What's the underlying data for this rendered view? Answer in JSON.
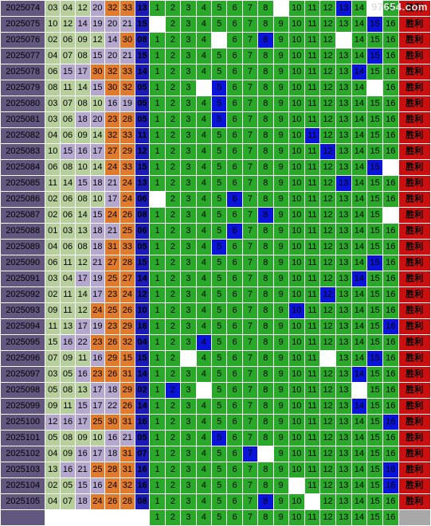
{
  "watermark": "97654.com",
  "result_label": "胜利",
  "colors": {
    "issue_bg": "#62577e",
    "green": "#b7cf9c",
    "purple": "#b4a8cf",
    "orange": "#e07a2c",
    "blue": "#1a1ab6",
    "cell": "#2aa82a",
    "hit": "#0a14d8",
    "result": "#c81010"
  },
  "rows": [
    {
      "issue": "2025074",
      "reds": [
        "03",
        "04",
        "12",
        "20",
        "32",
        "33"
      ],
      "blue": "13",
      "redcolors": [
        "g",
        "g",
        "g",
        "p",
        "o",
        "o"
      ],
      "hit": 13,
      "blanks": [
        9,
        15
      ]
    },
    {
      "issue": "2025075",
      "reds": [
        "10",
        "12",
        "14",
        "19",
        "20",
        "21"
      ],
      "blue": "15",
      "redcolors": [
        "g",
        "g",
        "p",
        "p",
        "p",
        "p"
      ],
      "hit": 15,
      "blanks": [
        1
      ]
    },
    {
      "issue": "2025076",
      "reds": [
        "02",
        "06",
        "09",
        "12",
        "14",
        "30"
      ],
      "blue": "08",
      "redcolors": [
        "g",
        "g",
        "g",
        "g",
        "p",
        "o"
      ],
      "hit": 8,
      "blanks": [
        5,
        13
      ]
    },
    {
      "issue": "2025077",
      "reds": [
        "04",
        "07",
        "08",
        "15",
        "20",
        "21"
      ],
      "blue": "15",
      "redcolors": [
        "g",
        "g",
        "g",
        "p",
        "p",
        "p"
      ],
      "hit": 15,
      "blanks": []
    },
    {
      "issue": "2025078",
      "reds": [
        "06",
        "15",
        "17",
        "30",
        "32",
        "33"
      ],
      "blue": "14",
      "redcolors": [
        "g",
        "p",
        "p",
        "o",
        "o",
        "o"
      ],
      "hit": 14,
      "blanks": []
    },
    {
      "issue": "2025079",
      "reds": [
        "08",
        "11",
        "14",
        "15",
        "30",
        "32"
      ],
      "blue": "05",
      "redcolors": [
        "g",
        "g",
        "g",
        "p",
        "o",
        "o"
      ],
      "hit": 5,
      "blanks": [
        4,
        15
      ]
    },
    {
      "issue": "2025080",
      "reds": [
        "03",
        "07",
        "08",
        "10",
        "16",
        "19"
      ],
      "blue": "05",
      "redcolors": [
        "g",
        "g",
        "g",
        "g",
        "p",
        "p"
      ],
      "hit": 5,
      "blanks": []
    },
    {
      "issue": "2025081",
      "reds": [
        "03",
        "06",
        "18",
        "20",
        "23",
        "28"
      ],
      "blue": "05",
      "redcolors": [
        "g",
        "g",
        "p",
        "p",
        "o",
        "o"
      ],
      "hit": 5,
      "blanks": []
    },
    {
      "issue": "2025082",
      "reds": [
        "04",
        "06",
        "09",
        "14",
        "32",
        "33"
      ],
      "blue": "11",
      "redcolors": [
        "g",
        "g",
        "g",
        "g",
        "o",
        "o"
      ],
      "hit": 11,
      "blanks": []
    },
    {
      "issue": "2025083",
      "reds": [
        "10",
        "15",
        "16",
        "17",
        "27",
        "29"
      ],
      "blue": "12",
      "redcolors": [
        "g",
        "p",
        "p",
        "p",
        "o",
        "o"
      ],
      "hit": 12,
      "blanks": []
    },
    {
      "issue": "2025084",
      "reds": [
        "06",
        "08",
        "10",
        "14",
        "24",
        "33"
      ],
      "blue": "15",
      "redcolors": [
        "g",
        "g",
        "g",
        "g",
        "o",
        "o"
      ],
      "hit": 15,
      "blanks": [
        16
      ]
    },
    {
      "issue": "2025085",
      "reds": [
        "11",
        "14",
        "15",
        "18",
        "21",
        "24"
      ],
      "blue": "13",
      "redcolors": [
        "g",
        "g",
        "p",
        "p",
        "p",
        "o"
      ],
      "hit": 13,
      "blanks": []
    },
    {
      "issue": "2025086",
      "reds": [
        "02",
        "06",
        "08",
        "10",
        "17",
        "24"
      ],
      "blue": "06",
      "redcolors": [
        "g",
        "g",
        "g",
        "g",
        "p",
        "o"
      ],
      "hit": 6,
      "blanks": [
        1
      ]
    },
    {
      "issue": "2025087",
      "reds": [
        "02",
        "06",
        "14",
        "15",
        "24",
        "26"
      ],
      "blue": "08",
      "redcolors": [
        "g",
        "g",
        "g",
        "p",
        "o",
        "o"
      ],
      "hit": 8,
      "blanks": [
        16
      ]
    },
    {
      "issue": "2025088",
      "reds": [
        "01",
        "03",
        "13",
        "18",
        "21",
        "25"
      ],
      "blue": "06",
      "redcolors": [
        "g",
        "g",
        "g",
        "p",
        "p",
        "o"
      ],
      "hit": 6,
      "blanks": []
    },
    {
      "issue": "2025089",
      "reds": [
        "04",
        "06",
        "08",
        "18",
        "31",
        "33"
      ],
      "blue": "05",
      "redcolors": [
        "g",
        "g",
        "g",
        "p",
        "o",
        "o"
      ],
      "hit": 5,
      "blanks": []
    },
    {
      "issue": "2025090",
      "reds": [
        "06",
        "11",
        "12",
        "21",
        "27",
        "28"
      ],
      "blue": "15",
      "redcolors": [
        "g",
        "g",
        "g",
        "p",
        "o",
        "o"
      ],
      "hit": 15,
      "blanks": []
    },
    {
      "issue": "2025091",
      "reds": [
        "03",
        "04",
        "17",
        "19",
        "25",
        "27"
      ],
      "blue": "14",
      "redcolors": [
        "g",
        "g",
        "p",
        "p",
        "o",
        "o"
      ],
      "hit": 14,
      "blanks": []
    },
    {
      "issue": "2025092",
      "reds": [
        "02",
        "11",
        "14",
        "17",
        "23",
        "24"
      ],
      "blue": "12",
      "redcolors": [
        "g",
        "g",
        "g",
        "p",
        "o",
        "o"
      ],
      "hit": 12,
      "blanks": []
    },
    {
      "issue": "2025093",
      "reds": [
        "09",
        "11",
        "12",
        "24",
        "25",
        "26"
      ],
      "blue": "10",
      "redcolors": [
        "g",
        "g",
        "g",
        "o",
        "o",
        "o"
      ],
      "hit": 10,
      "blanks": []
    },
    {
      "issue": "2025094",
      "reds": [
        "11",
        "13",
        "17",
        "19",
        "23",
        "29"
      ],
      "blue": "16",
      "redcolors": [
        "g",
        "g",
        "p",
        "p",
        "o",
        "o"
      ],
      "hit": 16,
      "blanks": []
    },
    {
      "issue": "2025095",
      "reds": [
        "15",
        "16",
        "22",
        "23",
        "26",
        "32"
      ],
      "blue": "04",
      "redcolors": [
        "g",
        "p",
        "p",
        "o",
        "o",
        "o"
      ],
      "hit": 4,
      "blanks": []
    },
    {
      "issue": "2025096",
      "reds": [
        "07",
        "09",
        "11",
        "16",
        "29",
        "15"
      ],
      "blue": "15",
      "redcolors": [
        "g",
        "g",
        "g",
        "p",
        "o",
        "o"
      ],
      "hit": 15,
      "blanks": [
        3,
        12
      ]
    },
    {
      "issue": "2025097",
      "reds": [
        "03",
        "05",
        "16",
        "23",
        "26",
        "31"
      ],
      "blue": "14",
      "redcolors": [
        "g",
        "g",
        "p",
        "o",
        "o",
        "o"
      ],
      "hit": 14,
      "blanks": []
    },
    {
      "issue": "2025098",
      "reds": [
        "05",
        "08",
        "13",
        "17",
        "18",
        "29"
      ],
      "blue": "02",
      "redcolors": [
        "g",
        "g",
        "g",
        "p",
        "p",
        "o"
      ],
      "hit": 2,
      "blanks": [
        4,
        14
      ]
    },
    {
      "issue": "2025099",
      "reds": [
        "09",
        "11",
        "15",
        "17",
        "22",
        "26"
      ],
      "blue": "14",
      "redcolors": [
        "g",
        "g",
        "p",
        "p",
        "p",
        "o"
      ],
      "hit": 14,
      "blanks": []
    },
    {
      "issue": "2025100",
      "reds": [
        "12",
        "16",
        "17",
        "25",
        "30",
        "31"
      ],
      "blue": "16",
      "redcolors": [
        "p",
        "p",
        "p",
        "o",
        "o",
        "o"
      ],
      "hit": 16,
      "blanks": []
    },
    {
      "issue": "2025101",
      "reds": [
        "05",
        "08",
        "09",
        "10",
        "16",
        "21"
      ],
      "blue": "05",
      "redcolors": [
        "g",
        "g",
        "g",
        "g",
        "p",
        "p"
      ],
      "hit": 5,
      "blanks": []
    },
    {
      "issue": "2025102",
      "reds": [
        "04",
        "09",
        "16",
        "17",
        "18",
        "31"
      ],
      "blue": "07",
      "redcolors": [
        "g",
        "g",
        "p",
        "p",
        "p",
        "o"
      ],
      "hit": 7,
      "blanks": [
        8
      ]
    },
    {
      "issue": "2025103",
      "reds": [
        "13",
        "16",
        "21",
        "25",
        "28",
        "31"
      ],
      "blue": "16",
      "redcolors": [
        "g",
        "p",
        "p",
        "o",
        "o",
        "o"
      ],
      "hit": 16,
      "blanks": []
    },
    {
      "issue": "2025104",
      "reds": [
        "02",
        "05",
        "15",
        "16",
        "24",
        "32"
      ],
      "blue": "16",
      "redcolors": [
        "g",
        "g",
        "p",
        "p",
        "o",
        "o"
      ],
      "hit": 16,
      "blanks": [
        10
      ]
    },
    {
      "issue": "2025105",
      "reds": [
        "04",
        "07",
        "18",
        "24",
        "26",
        "28"
      ],
      "blue": "08",
      "redcolors": [
        "g",
        "g",
        "p",
        "o",
        "o",
        "o"
      ],
      "hit": 8,
      "blanks": [
        11
      ]
    }
  ],
  "bottom_numbers": [
    "1",
    "2",
    "3",
    "4",
    "5",
    "6",
    "7",
    "8",
    "9",
    "10",
    "11",
    "12",
    "13",
    "14",
    "15",
    "16"
  ]
}
